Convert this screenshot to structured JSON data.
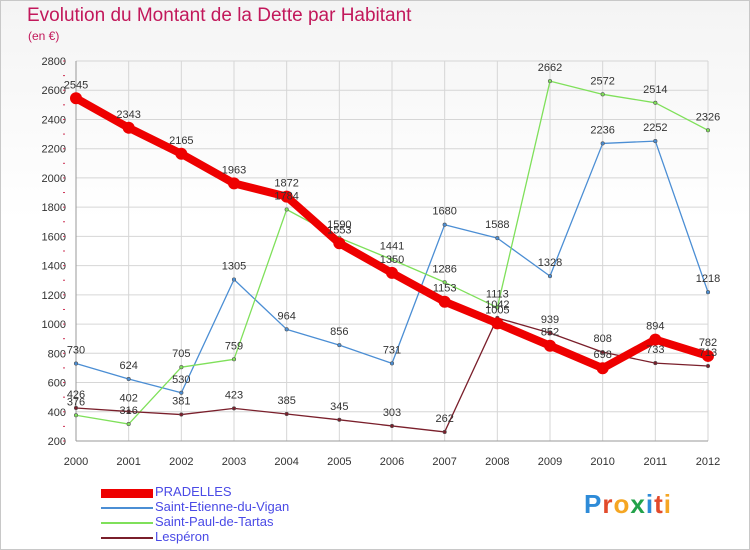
{
  "header": {
    "title": "Evolution du Montant de la Dette par Habitant",
    "subtitle": "(en €)"
  },
  "logo": {
    "text": "Proxiti",
    "colors": [
      "#2e8bd8",
      "#e24a2b",
      "#f5a623",
      "#22a24a",
      "#2e8bd8",
      "#e24a2b",
      "#f5a623"
    ]
  },
  "chart_data": {
    "type": "line",
    "title": "Evolution du Montant de la Dette par Habitant",
    "subtitle": "(en €)",
    "x": [
      "2000",
      "2001",
      "2002",
      "2003",
      "2004",
      "2005",
      "2006",
      "2007",
      "2008",
      "2009",
      "2010",
      "2011",
      "2012"
    ],
    "ylim": [
      200,
      2800
    ],
    "yticks": [
      200,
      400,
      600,
      800,
      1000,
      1200,
      1400,
      1600,
      1800,
      2000,
      2200,
      2400,
      2600,
      2800
    ],
    "grid": true,
    "legend_position": "bottom-left",
    "series": [
      {
        "name": "PRADELLES",
        "color": "#ee0000",
        "width": 8,
        "dot": 10,
        "values": [
          2545,
          2343,
          2165,
          1963,
          1872,
          1553,
          1350,
          1153,
          1005,
          852,
          698,
          894,
          782
        ]
      },
      {
        "name": "Saint-Etienne-du-Vigan",
        "color": "#4b8ed4",
        "width": 1.3,
        "dot": 3.5,
        "values": [
          730,
          624,
          530,
          1305,
          964,
          856,
          731,
          1680,
          1588,
          1328,
          2236,
          2252,
          1218
        ]
      },
      {
        "name": "Saint-Paul-de-Tartas",
        "color": "#7fe05a",
        "width": 1.3,
        "dot": 3.5,
        "values": [
          376,
          316,
          705,
          759,
          1784,
          1590,
          1441,
          1286,
          1113,
          2662,
          2572,
          2514,
          2326
        ]
      },
      {
        "name": "Lespéron",
        "color": "#7a1f2b",
        "width": 1.3,
        "dot": 3.5,
        "values": [
          426,
          402,
          381,
          423,
          385,
          345,
          303,
          262,
          1042,
          939,
          808,
          733,
          713
        ]
      }
    ]
  }
}
